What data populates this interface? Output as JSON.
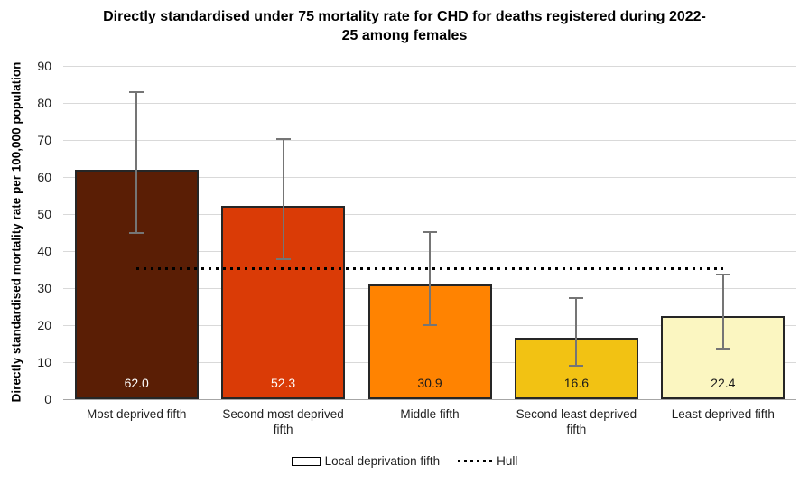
{
  "chart_data": {
    "type": "bar",
    "title": "Directly standardised under 75 mortality rate for CHD for deaths registered during 2022-\n25 among females",
    "ylabel": "Directly standardised mortality rate per 100,000 population",
    "xlabel": "",
    "ylim": [
      0,
      90
    ],
    "yticks": [
      0,
      10,
      20,
      30,
      40,
      50,
      60,
      70,
      80,
      90
    ],
    "grid": true,
    "legend_position": "bottom",
    "categories": [
      "Most deprived fifth",
      "Second most deprived fifth",
      "Middle fifth",
      "Second least deprived fifth",
      "Least deprived fifth"
    ],
    "bars": [
      {
        "category": "Most deprived fifth",
        "value": 62.0,
        "label": "62.0",
        "ci_low": 45.0,
        "ci_high": 83.0,
        "color": "#5A1E05",
        "label_color": "#FFFFFF"
      },
      {
        "category": "Second most deprived fifth",
        "value": 52.3,
        "label": "52.3",
        "ci_low": 37.7,
        "ci_high": 70.2,
        "color": "#DA3B06",
        "label_color": "#FFFFFF"
      },
      {
        "category": "Middle fifth",
        "value": 30.9,
        "label": "30.9",
        "ci_low": 20.0,
        "ci_high": 45.2,
        "color": "#FF8301",
        "label_color": "#1A1A1A"
      },
      {
        "category": "Second least deprived fifth",
        "value": 16.6,
        "label": "16.6",
        "ci_low": 9.0,
        "ci_high": 27.3,
        "color": "#F2C213",
        "label_color": "#1A1A1A"
      },
      {
        "category": "Least deprived fifth",
        "value": 22.4,
        "label": "22.4",
        "ci_low": 13.7,
        "ci_high": 33.7,
        "color": "#FBF6C1",
        "label_color": "#1A1A1A"
      }
    ],
    "reference_line": {
      "name": "Hull",
      "value": 35.2,
      "style": "dotted",
      "color": "#000000"
    },
    "legend": [
      {
        "label": "Local deprivation fifth",
        "swatch": "bar-outline"
      },
      {
        "label": "Hull",
        "swatch": "dotted-line"
      }
    ],
    "bar_border_color": "#262626",
    "error_bar_color": "#757575"
  }
}
